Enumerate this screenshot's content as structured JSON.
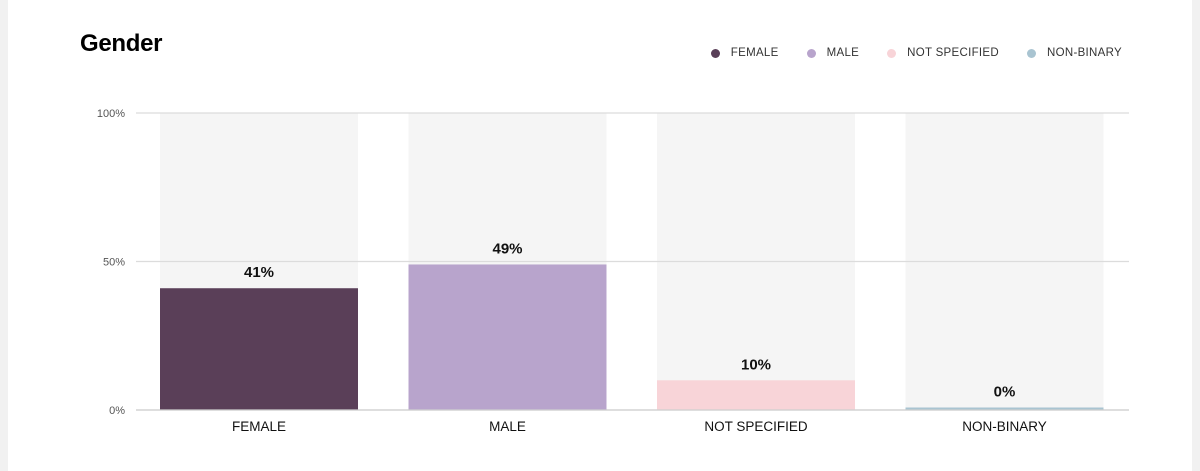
{
  "title": "Gender",
  "chart_data": {
    "type": "bar",
    "categories": [
      "FEMALE",
      "MALE",
      "NOT SPECIFIED",
      "NON-BINARY"
    ],
    "values": [
      41,
      49,
      10,
      0
    ],
    "value_labels": [
      "41%",
      "49%",
      "10%",
      "0%"
    ],
    "colors": [
      "#5a3f58",
      "#b8a4cc",
      "#f8d4d8",
      "#a9c4d1"
    ],
    "background_bar_color": "#f5f5f5",
    "ylim": [
      0,
      100
    ],
    "yticks": [
      {
        "value": 100,
        "label": "100%"
      },
      {
        "value": 50,
        "label": "50%"
      },
      {
        "value": 0,
        "label": "0%"
      }
    ],
    "grid": true,
    "legend": {
      "placement": "top-right",
      "entries": [
        "FEMALE",
        "MALE",
        "NOT SPECIFIED",
        "NON-BINARY"
      ]
    },
    "xlabel": "",
    "ylabel": ""
  }
}
